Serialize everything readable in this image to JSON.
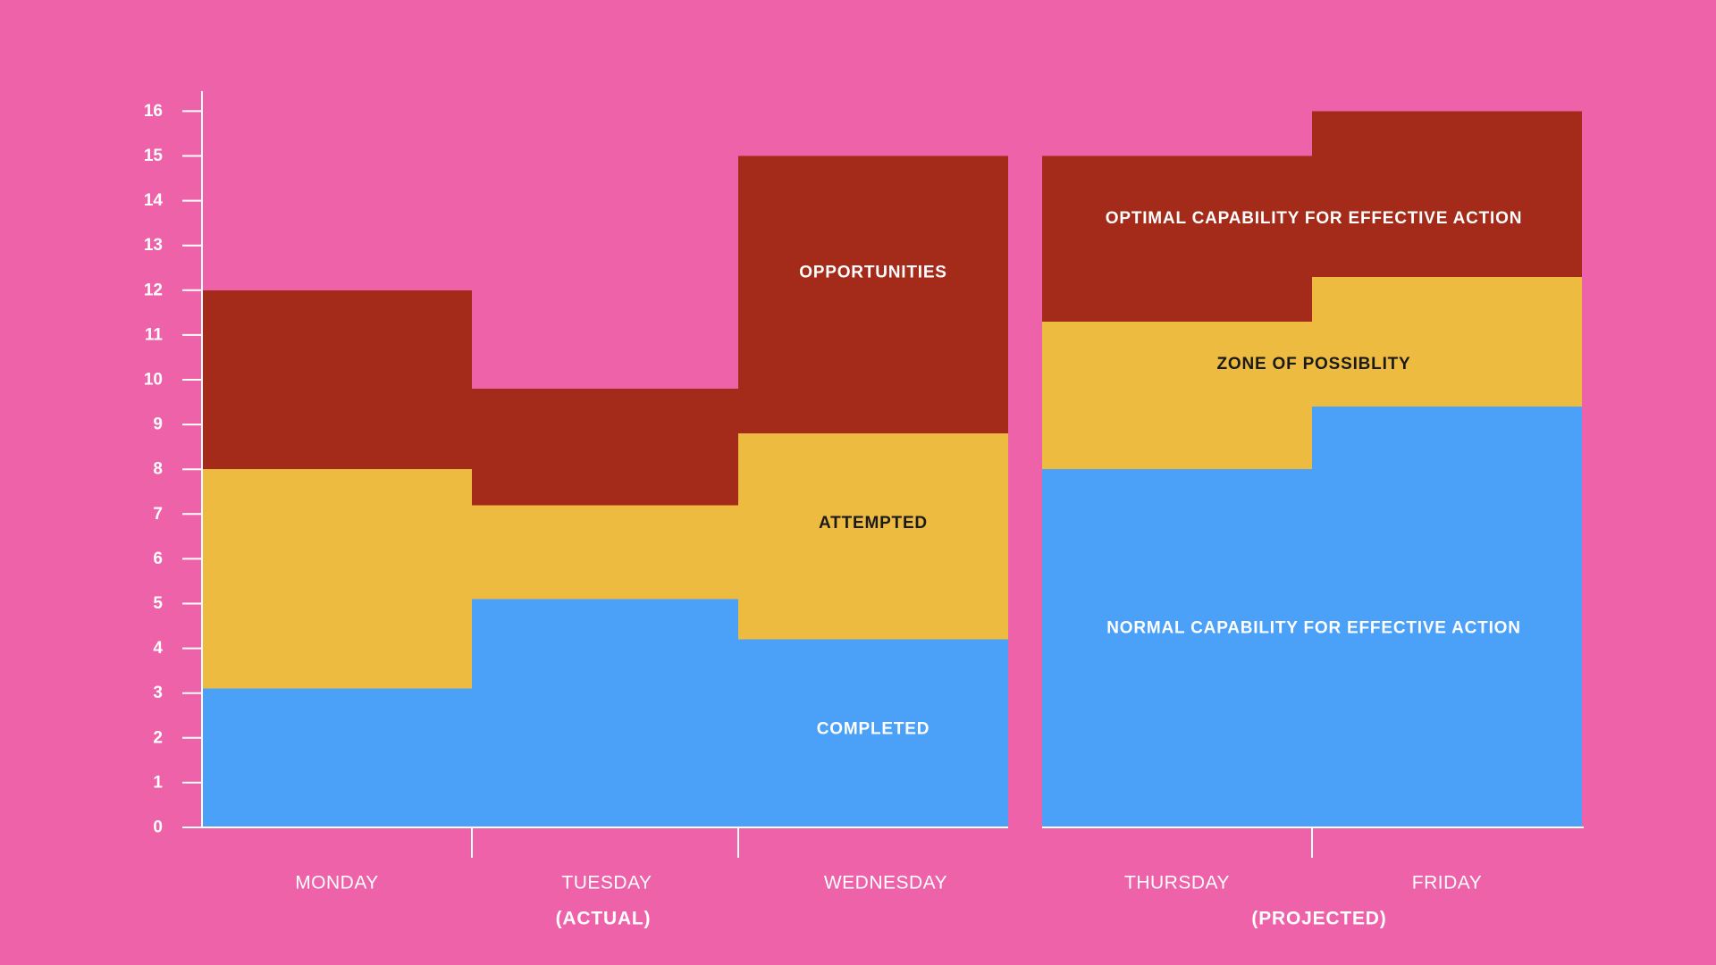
{
  "chart_data": {
    "type": "bar",
    "stacked": true,
    "title": "",
    "xlabel": "",
    "ylabel": "",
    "ylim": [
      0,
      16
    ],
    "y_ticks": [
      "0",
      "1",
      "2",
      "3",
      "4",
      "5",
      "6",
      "7",
      "8",
      "9",
      "10",
      "11",
      "12",
      "13",
      "14",
      "15",
      "16"
    ],
    "grid": false,
    "categories": [
      "MONDAY",
      "TUESDAY",
      "WEDNESDAY",
      "THURSDAY",
      "FRIDAY"
    ],
    "groups": [
      {
        "label": "(ACTUAL)",
        "categories": [
          "MONDAY",
          "TUESDAY",
          "WEDNESDAY"
        ]
      },
      {
        "label": "(PROJECTED)",
        "categories": [
          "THURSDAY",
          "FRIDAY"
        ]
      }
    ],
    "series": [
      {
        "color": "#4BA1F8",
        "values": [
          3.1,
          5.1,
          4.2,
          8.0,
          9.4
        ]
      },
      {
        "color": "#EEBB41",
        "values": [
          4.9,
          2.1,
          4.6,
          3.3,
          2.9
        ]
      },
      {
        "color": "#A42B19",
        "values": [
          4.0,
          2.6,
          6.2,
          3.7,
          3.7
        ]
      }
    ],
    "annotations": [
      {
        "text": "OPPORTUNITIES",
        "category": "WEDNESDAY",
        "y": 12.4,
        "tone": "light"
      },
      {
        "text": "ATTEMPTED",
        "category": "WEDNESDAY",
        "y": 6.8,
        "tone": "dark"
      },
      {
        "text": "COMPLETED",
        "category": "WEDNESDAY",
        "y": 2.2,
        "tone": "light"
      },
      {
        "text": "OPTIMAL CAPABILITY FOR EFFECTIVE ACTION",
        "category": "THURSDAY-FRIDAY",
        "y": 13.6,
        "tone": "light"
      },
      {
        "text": "ZONE OF POSSIBLITY",
        "category": "THURSDAY-FRIDAY",
        "y": 10.35,
        "tone": "dark"
      },
      {
        "text": "NORMAL CAPABILITY FOR EFFECTIVE ACTION",
        "category": "THURSDAY-FRIDAY",
        "y": 4.45,
        "tone": "light"
      }
    ]
  },
  "colors": {
    "background": "#EE62AA",
    "axis": "#FFFFFF"
  }
}
